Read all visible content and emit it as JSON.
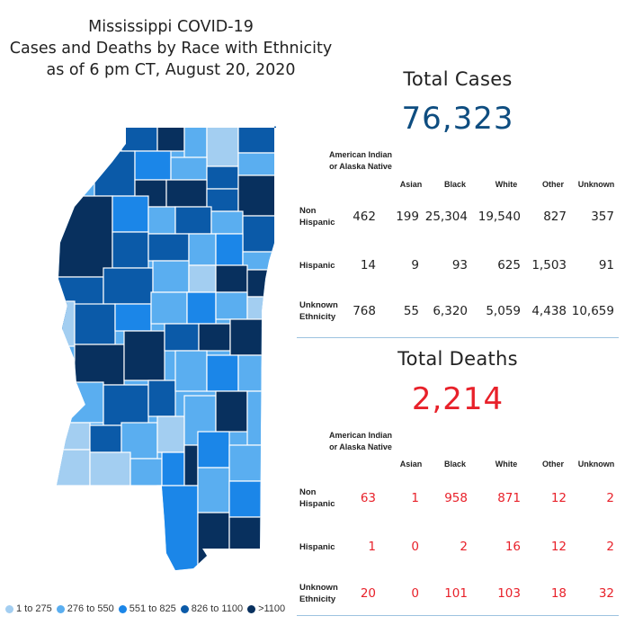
{
  "title": {
    "line1": "Mississippi COVID-19",
    "line2": "Cases and Deaths by Race with Ethnicity",
    "line3": "as of 6 pm CT, August 20, 2020"
  },
  "legend": [
    {
      "label": "1 to 275",
      "color": "#a3cef1"
    },
    {
      "label": "276 to 550",
      "color": "#5aaef0"
    },
    {
      "label": "551 to 825",
      "color": "#1b86e8"
    },
    {
      "label": "826 to 1100",
      "color": "#0b5aa8"
    },
    {
      "label": ">1100",
      "color": "#08305e"
    }
  ],
  "cases": {
    "heading": "Total Cases",
    "total": "76,323",
    "color": "#0e4d80",
    "columns": [
      "American Indian or Alaska Native",
      "Asian",
      "Black",
      "White",
      "Other",
      "Unknown"
    ],
    "rows": [
      {
        "label": "Non Hispanic",
        "values": [
          "462",
          "199",
          "25,304",
          "19,540",
          "827",
          "357"
        ]
      },
      {
        "label": "Hispanic",
        "values": [
          "14",
          "9",
          "93",
          "625",
          "1,503",
          "91"
        ]
      },
      {
        "label": "Unknown Ethnicity",
        "values": [
          "768",
          "55",
          "6,320",
          "5,059",
          "4,438",
          "10,659"
        ]
      }
    ]
  },
  "deaths": {
    "heading": "Total Deaths",
    "total": "2,214",
    "color": "#e8212a",
    "columns": [
      "American Indian or Alaska Native",
      "Asian",
      "Black",
      "White",
      "Other",
      "Unknown"
    ],
    "rows": [
      {
        "label": "Non Hispanic",
        "values": [
          "63",
          "1",
          "958",
          "871",
          "12",
          "2"
        ]
      },
      {
        "label": "Hispanic",
        "values": [
          "1",
          "0",
          "2",
          "16",
          "12",
          "2"
        ]
      },
      {
        "label": "Unknown Ethnicity",
        "values": [
          "20",
          "0",
          "101",
          "103",
          "18",
          "32"
        ]
      }
    ]
  },
  "chart_data": {
    "type": "table",
    "title": "Mississippi COVID-19 Cases and Deaths by Race with Ethnicity as of 6 pm CT, August 20, 2020",
    "columns": [
      "American Indian or Alaska Native",
      "Asian",
      "Black",
      "White",
      "Other",
      "Unknown"
    ],
    "row_labels": [
      "Non Hispanic",
      "Hispanic",
      "Unknown Ethnicity"
    ],
    "tables": [
      {
        "name": "Total Cases",
        "total": 76323,
        "values": [
          [
            462,
            199,
            25304,
            19540,
            827,
            357
          ],
          [
            14,
            9,
            93,
            625,
            1503,
            91
          ],
          [
            768,
            55,
            6320,
            5059,
            4438,
            10659
          ]
        ]
      },
      {
        "name": "Total Deaths",
        "total": 2214,
        "values": [
          [
            63,
            1,
            958,
            871,
            12,
            2
          ],
          [
            1,
            0,
            2,
            16,
            12,
            2
          ],
          [
            20,
            0,
            101,
            103,
            18,
            32
          ]
        ]
      }
    ]
  }
}
